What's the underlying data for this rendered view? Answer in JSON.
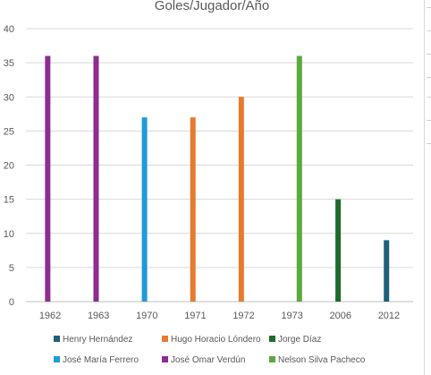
{
  "chart_data": {
    "type": "bar",
    "title": "Goles/Jugador/Año",
    "categories": [
      "1962",
      "1963",
      "1970",
      "1971",
      "1972",
      "1973",
      "2006",
      "2012"
    ],
    "ylim": [
      0,
      40
    ],
    "yticks": [
      0,
      5,
      10,
      15,
      20,
      25,
      30,
      35,
      40
    ],
    "grid": true,
    "legend_position": "bottom",
    "series": [
      {
        "name": "Henry Hernández",
        "color": "#1f5f7a",
        "points": [
          {
            "x": 7.45,
            "y": 9
          }
        ]
      },
      {
        "name": "Hugo Horacio Lóndero",
        "color": "#e87a2e",
        "points": [
          {
            "x": 3.45,
            "y": 27
          },
          {
            "x": 4.45,
            "y": 30
          }
        ]
      },
      {
        "name": "Jorge Díaz",
        "color": "#1e6b2c",
        "points": [
          {
            "x": 6.45,
            "y": 15
          }
        ]
      },
      {
        "name": "José María Ferrero",
        "color": "#1f9bd7",
        "points": [
          {
            "x": 2.45,
            "y": 27
          }
        ]
      },
      {
        "name": "José Omar Verdún",
        "color": "#8e2c91",
        "points": [
          {
            "x": 0.45,
            "y": 36
          },
          {
            "x": 1.45,
            "y": 36
          }
        ]
      },
      {
        "name": "Nelson Silva Pacheco",
        "color": "#5aaa3c",
        "points": [
          {
            "x": 5.65,
            "y": 36
          }
        ]
      }
    ]
  }
}
